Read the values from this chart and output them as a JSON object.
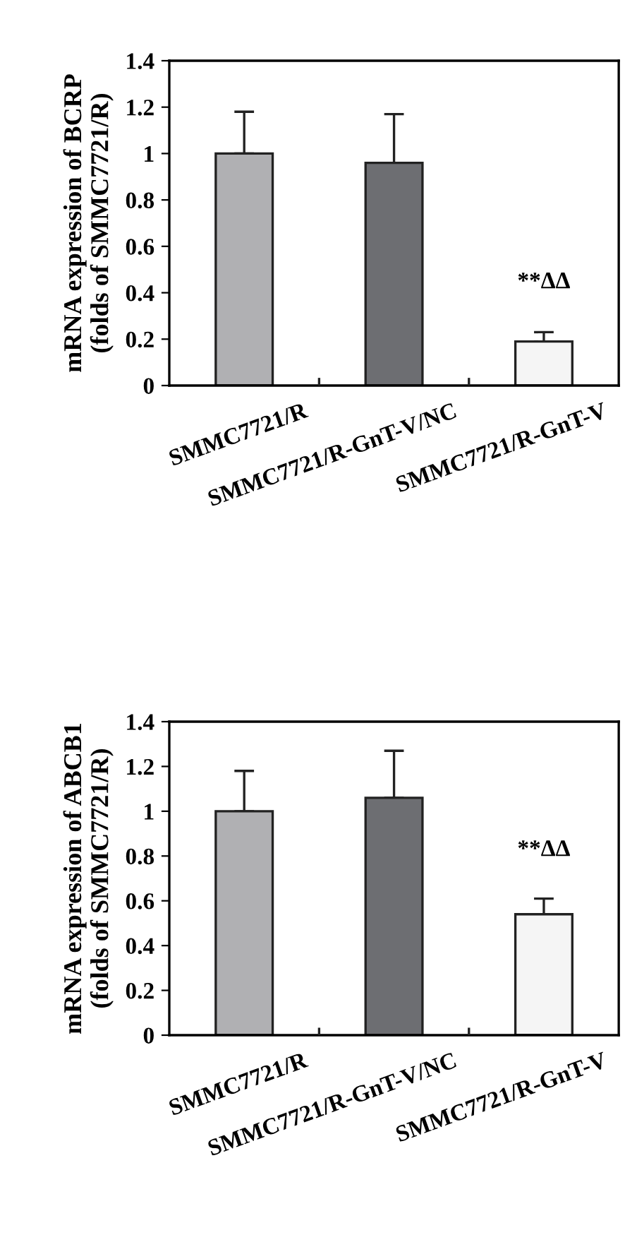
{
  "chart_data": [
    {
      "type": "bar",
      "ylabel": "mRNA expression of BCRP\n(folds of SMMC7721/R)",
      "categories": [
        "SMMC7721/R",
        "SMMC7721/R-GnT-V/NC",
        "SMMC7721/R-GnT-V"
      ],
      "values": [
        1.0,
        0.96,
        0.19
      ],
      "errors": [
        [
          1.0,
          1.18
        ],
        [
          0.96,
          1.17
        ],
        [
          0.19,
          0.23
        ]
      ],
      "colors": [
        "#b0b0b3",
        "#6d6e72",
        "#f5f5f5"
      ],
      "ylim": [
        0,
        1.4
      ],
      "yticks": [
        0,
        0.2,
        0.4,
        0.6,
        0.8,
        1,
        1.2,
        1.4
      ],
      "annotations": [
        "**ΔΔ"
      ]
    },
    {
      "type": "bar",
      "ylabel": "mRNA expression of ABCB1\n(folds of SMMC7721/R)",
      "categories": [
        "SMMC7721/R",
        "SMMC7721/R-GnT-V/NC",
        "SMMC7721/R-GnT-V"
      ],
      "values": [
        1.0,
        1.06,
        0.54
      ],
      "errors": [
        [
          1.0,
          1.18
        ],
        [
          1.06,
          1.27
        ],
        [
          0.54,
          0.61
        ]
      ],
      "colors": [
        "#b0b0b3",
        "#6d6e72",
        "#f5f5f5"
      ],
      "ylim": [
        0,
        1.4
      ],
      "yticks": [
        0,
        0.2,
        0.4,
        0.6,
        0.8,
        1,
        1.2,
        1.4
      ],
      "annotations": [
        "**ΔΔ"
      ]
    }
  ]
}
